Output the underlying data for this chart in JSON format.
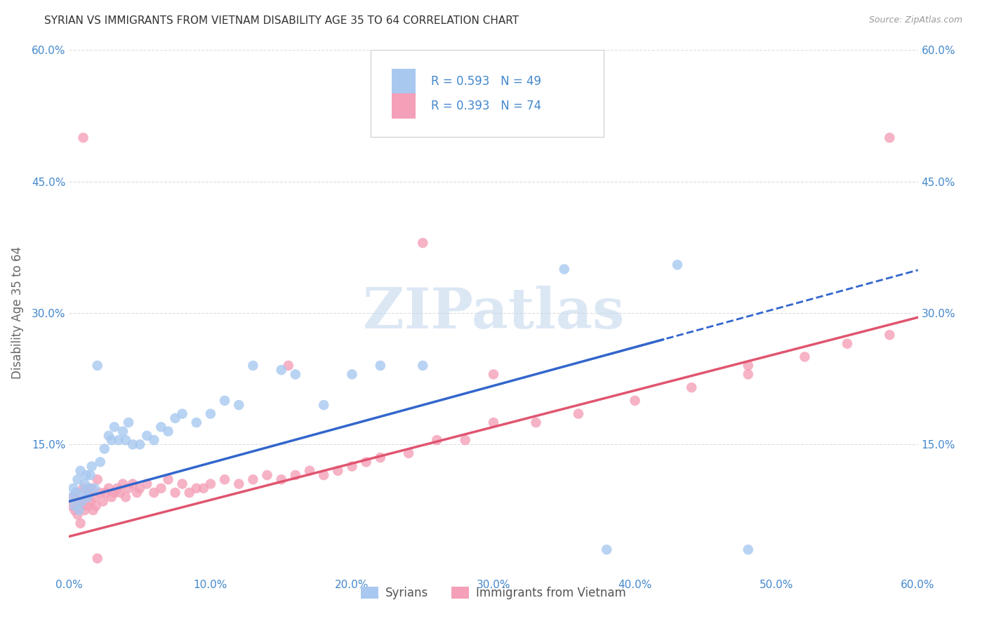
{
  "title": "SYRIAN VS IMMIGRANTS FROM VIETNAM DISABILITY AGE 35 TO 64 CORRELATION CHART",
  "source": "Source: ZipAtlas.com",
  "ylabel": "Disability Age 35 to 64",
  "xlim": [
    0.0,
    0.6
  ],
  "ylim": [
    0.0,
    0.6
  ],
  "xticks": [
    0.0,
    0.1,
    0.2,
    0.3,
    0.4,
    0.5,
    0.6
  ],
  "yticks": [
    0.0,
    0.15,
    0.3,
    0.45,
    0.6
  ],
  "xticklabels": [
    "0.0%",
    "10.0%",
    "20.0%",
    "30.0%",
    "40.0%",
    "50.0%",
    "60.0%"
  ],
  "yticklabels": [
    "",
    "15.0%",
    "30.0%",
    "45.0%",
    "60.0%"
  ],
  "watermark": "ZIPatlas",
  "syrian_R": 0.593,
  "syrian_N": 49,
  "vietnam_R": 0.393,
  "vietnam_N": 74,
  "syrian_color": "#A8C8F0",
  "vietnam_color": "#F4A0B8",
  "syrian_line_color": "#3366CC",
  "vietnam_line_color": "#E05570",
  "background_color": "#FFFFFF",
  "grid_color": "#DDDDDD",
  "axis_label_color": "#4488CC",
  "title_color": "#333333",
  "syrian_line_x0": 0.0,
  "syrian_line_y0": 0.085,
  "syrian_line_x1": 0.5,
  "syrian_line_y1": 0.305,
  "vietnam_line_x0": 0.0,
  "vietnam_line_y0": 0.045,
  "vietnam_line_x1": 0.6,
  "vietnam_line_y1": 0.295,
  "syrian_x": [
    0.002,
    0.003,
    0.004,
    0.005,
    0.006,
    0.007,
    0.008,
    0.009,
    0.01,
    0.011,
    0.012,
    0.013,
    0.014,
    0.015,
    0.016,
    0.018,
    0.02,
    0.022,
    0.025,
    0.028,
    0.03,
    0.032,
    0.035,
    0.038,
    0.04,
    0.042,
    0.045,
    0.05,
    0.055,
    0.06,
    0.065,
    0.07,
    0.075,
    0.08,
    0.09,
    0.1,
    0.11,
    0.12,
    0.13,
    0.15,
    0.16,
    0.18,
    0.2,
    0.22,
    0.25,
    0.35,
    0.38,
    0.43,
    0.48
  ],
  "syrian_y": [
    0.09,
    0.1,
    0.08,
    0.095,
    0.11,
    0.075,
    0.12,
    0.085,
    0.095,
    0.105,
    0.115,
    0.09,
    0.1,
    0.115,
    0.125,
    0.1,
    0.24,
    0.13,
    0.145,
    0.16,
    0.155,
    0.17,
    0.155,
    0.165,
    0.155,
    0.175,
    0.15,
    0.15,
    0.16,
    0.155,
    0.17,
    0.165,
    0.18,
    0.185,
    0.175,
    0.185,
    0.2,
    0.195,
    0.24,
    0.235,
    0.23,
    0.195,
    0.23,
    0.24,
    0.24,
    0.35,
    0.03,
    0.355,
    0.03
  ],
  "vietnam_x": [
    0.002,
    0.003,
    0.004,
    0.005,
    0.006,
    0.007,
    0.008,
    0.009,
    0.01,
    0.011,
    0.012,
    0.013,
    0.014,
    0.015,
    0.016,
    0.017,
    0.018,
    0.019,
    0.02,
    0.022,
    0.024,
    0.026,
    0.028,
    0.03,
    0.032,
    0.034,
    0.036,
    0.038,
    0.04,
    0.042,
    0.045,
    0.048,
    0.05,
    0.055,
    0.06,
    0.065,
    0.07,
    0.075,
    0.08,
    0.085,
    0.09,
    0.095,
    0.1,
    0.11,
    0.12,
    0.13,
    0.14,
    0.15,
    0.16,
    0.17,
    0.18,
    0.19,
    0.2,
    0.21,
    0.22,
    0.24,
    0.26,
    0.28,
    0.3,
    0.33,
    0.36,
    0.4,
    0.44,
    0.48,
    0.52,
    0.55,
    0.58,
    0.3,
    0.02,
    0.48,
    0.01,
    0.25,
    0.58,
    0.155
  ],
  "vietnam_y": [
    0.08,
    0.09,
    0.075,
    0.095,
    0.07,
    0.085,
    0.06,
    0.08,
    0.1,
    0.075,
    0.09,
    0.08,
    0.095,
    0.085,
    0.1,
    0.075,
    0.09,
    0.08,
    0.11,
    0.095,
    0.085,
    0.095,
    0.1,
    0.09,
    0.095,
    0.1,
    0.095,
    0.105,
    0.09,
    0.1,
    0.105,
    0.095,
    0.1,
    0.105,
    0.095,
    0.1,
    0.11,
    0.095,
    0.105,
    0.095,
    0.1,
    0.1,
    0.105,
    0.11,
    0.105,
    0.11,
    0.115,
    0.11,
    0.115,
    0.12,
    0.115,
    0.12,
    0.125,
    0.13,
    0.135,
    0.14,
    0.155,
    0.155,
    0.175,
    0.175,
    0.185,
    0.2,
    0.215,
    0.23,
    0.25,
    0.265,
    0.275,
    0.23,
    0.02,
    0.24,
    0.5,
    0.38,
    0.5,
    0.24
  ]
}
